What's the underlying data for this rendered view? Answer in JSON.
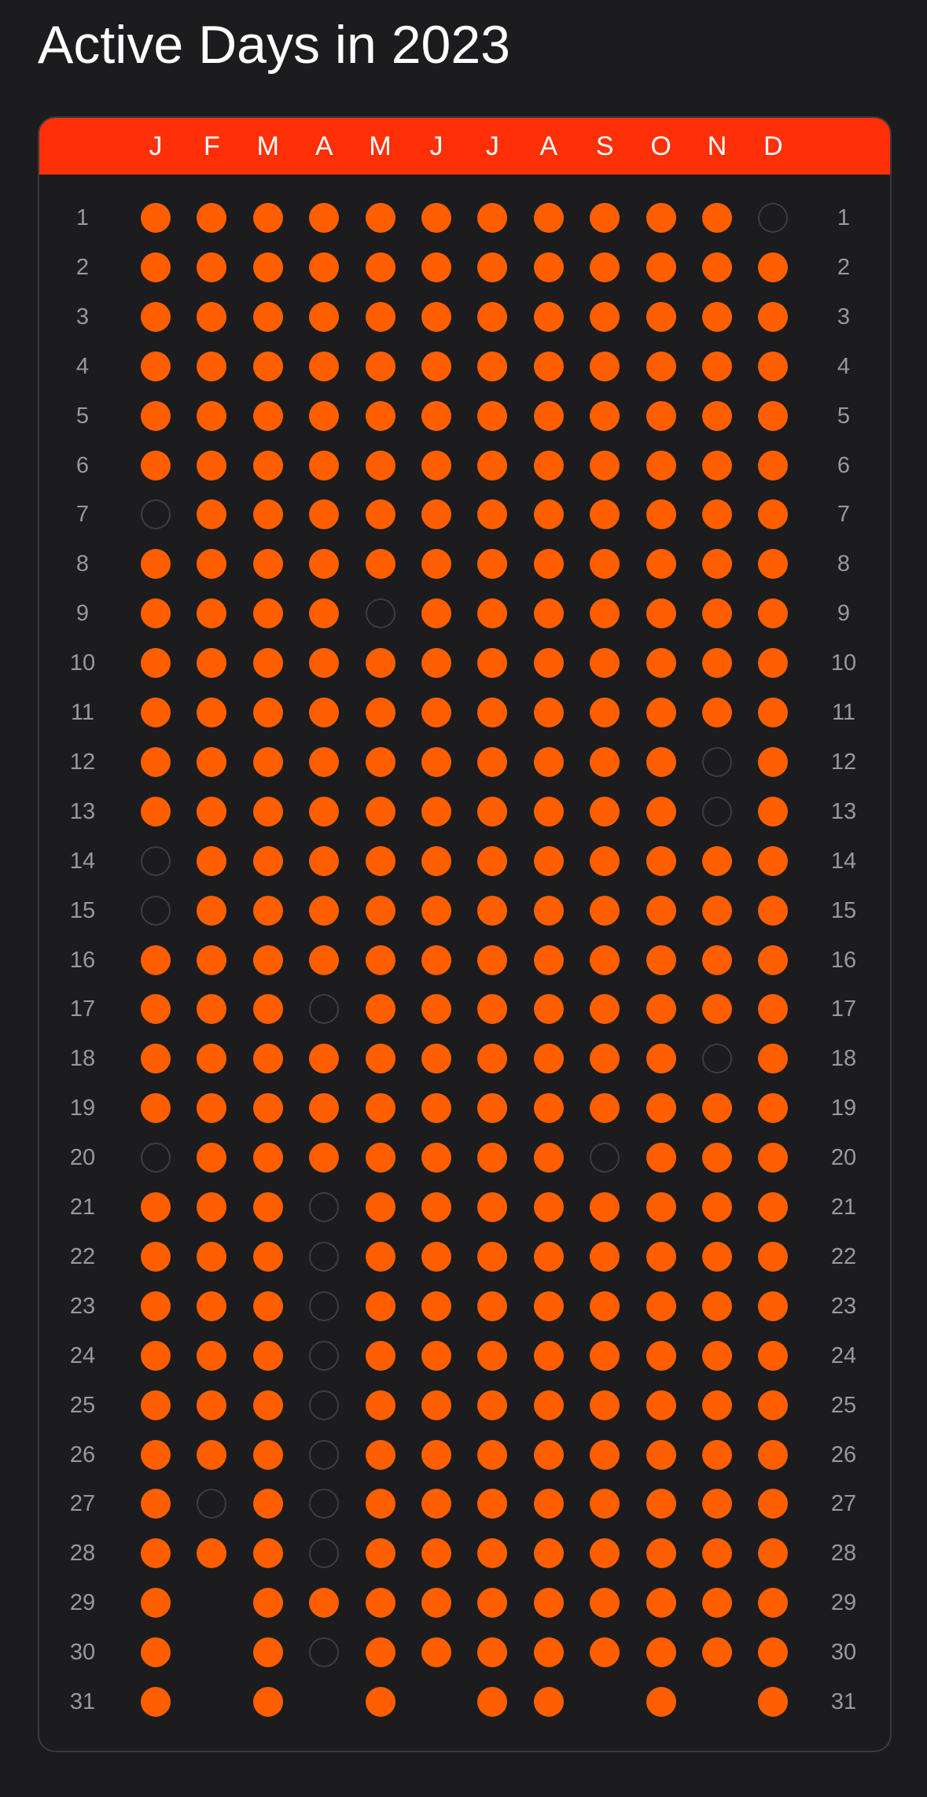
{
  "title": "Active Days in 2023",
  "colors": {
    "background": "#1c1c1e",
    "header": "#ff3008",
    "active_dot": "#ff5f00",
    "inactive_ring": "#3d3d41",
    "day_label": "#98989d"
  },
  "months": [
    "J",
    "F",
    "M",
    "A",
    "M",
    "J",
    "J",
    "A",
    "S",
    "O",
    "N",
    "D"
  ],
  "days": [
    "1",
    "2",
    "3",
    "4",
    "5",
    "6",
    "7",
    "8",
    "9",
    "10",
    "11",
    "12",
    "13",
    "14",
    "15",
    "16",
    "17",
    "18",
    "19",
    "20",
    "21",
    "22",
    "23",
    "24",
    "25",
    "26",
    "27",
    "28",
    "29",
    "30",
    "31"
  ],
  "month_lengths": [
    31,
    28,
    31,
    30,
    31,
    30,
    31,
    31,
    30,
    31,
    30,
    31
  ],
  "inactive_days": {
    "J": [
      7,
      14,
      15,
      20
    ],
    "F": [
      27
    ],
    "M": [],
    "A": [
      17,
      21,
      22,
      23,
      24,
      25,
      26,
      27,
      28,
      30
    ],
    "M2": [
      9
    ],
    "J2": [],
    "J3": [],
    "A2": [],
    "S": [
      20
    ],
    "O": [],
    "N": [
      12,
      13,
      18
    ],
    "D": [
      1
    ]
  },
  "inactive_by_month_index": [
    [
      7,
      14,
      15,
      20
    ],
    [
      27
    ],
    [],
    [
      17,
      21,
      22,
      23,
      24,
      25,
      26,
      27,
      28,
      30
    ],
    [
      9
    ],
    [],
    [],
    [],
    [
      20
    ],
    [],
    [
      12,
      13,
      18
    ],
    [
      1
    ]
  ]
}
